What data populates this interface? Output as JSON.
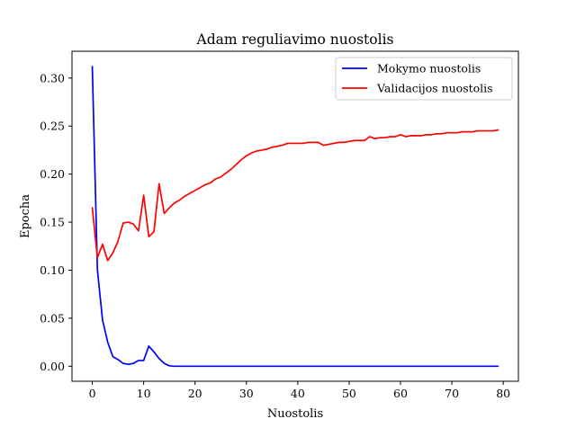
{
  "chart_data": {
    "type": "line",
    "title": "Adam reguliavimo nuostolis",
    "xlabel": "Nuostolis",
    "ylabel": "Epocha",
    "xlim": [
      -3.95,
      82.95
    ],
    "ylim": [
      -0.0156,
      0.3279
    ],
    "xticks": [
      0,
      10,
      20,
      30,
      40,
      50,
      60,
      70,
      80
    ],
    "yticks": [
      0.0,
      0.05,
      0.1,
      0.15,
      0.2,
      0.25,
      0.3
    ],
    "ytick_labels": [
      "0.00",
      "0.05",
      "0.10",
      "0.15",
      "0.20",
      "0.25",
      "0.30"
    ],
    "grid": false,
    "legend_position": "top-right",
    "series": [
      {
        "name": "Mokymo nuostolis",
        "color": "#0000ff",
        "x": [
          0,
          1,
          2,
          3,
          4,
          5,
          6,
          7,
          8,
          9,
          10,
          11,
          12,
          13,
          14,
          15,
          16,
          17,
          18,
          19,
          20,
          21,
          22,
          23,
          24,
          25,
          26,
          27,
          28,
          29,
          30,
          31,
          32,
          33,
          34,
          35,
          36,
          37,
          38,
          39,
          40,
          41,
          42,
          43,
          44,
          45,
          46,
          47,
          48,
          49,
          50,
          51,
          52,
          53,
          54,
          55,
          56,
          57,
          58,
          59,
          60,
          61,
          62,
          63,
          64,
          65,
          66,
          67,
          68,
          69,
          70,
          71,
          72,
          73,
          74,
          75,
          76,
          77,
          78,
          79
        ],
        "y": [
          0.312,
          0.1,
          0.048,
          0.025,
          0.01,
          0.007,
          0.003,
          0.002,
          0.003,
          0.006,
          0.006,
          0.021,
          0.015,
          0.008,
          0.003,
          0.0005,
          0,
          0,
          0,
          0,
          0,
          0,
          0,
          0,
          0,
          0,
          0,
          0,
          0,
          0,
          0,
          0,
          0,
          0,
          0,
          0,
          0,
          0,
          0,
          0,
          0,
          0,
          0,
          0,
          0,
          0,
          0,
          0,
          0,
          0,
          0,
          0,
          0,
          0,
          0,
          0,
          0,
          0,
          0,
          0,
          0,
          0,
          0,
          0,
          0,
          0,
          0,
          0,
          0,
          0,
          0,
          0,
          0,
          0,
          0,
          0,
          0,
          0,
          0,
          0
        ]
      },
      {
        "name": "Validacijos nuostolis",
        "color": "#ff0000",
        "x": [
          0,
          1,
          2,
          3,
          4,
          5,
          6,
          7,
          8,
          9,
          10,
          11,
          12,
          13,
          14,
          15,
          16,
          17,
          18,
          19,
          20,
          21,
          22,
          23,
          24,
          25,
          26,
          27,
          28,
          29,
          30,
          31,
          32,
          33,
          34,
          35,
          36,
          37,
          38,
          39,
          40,
          41,
          42,
          43,
          44,
          45,
          46,
          47,
          48,
          49,
          50,
          51,
          52,
          53,
          54,
          55,
          56,
          57,
          58,
          59,
          60,
          61,
          62,
          63,
          64,
          65,
          66,
          67,
          68,
          69,
          70,
          71,
          72,
          73,
          74,
          75,
          76,
          77,
          78,
          79
        ],
        "y": [
          0.165,
          0.113,
          0.127,
          0.11,
          0.118,
          0.13,
          0.149,
          0.15,
          0.148,
          0.141,
          0.178,
          0.135,
          0.14,
          0.19,
          0.159,
          0.165,
          0.17,
          0.173,
          0.177,
          0.18,
          0.183,
          0.186,
          0.189,
          0.191,
          0.195,
          0.197,
          0.201,
          0.205,
          0.21,
          0.215,
          0.219,
          0.222,
          0.224,
          0.225,
          0.226,
          0.228,
          0.229,
          0.23,
          0.232,
          0.232,
          0.232,
          0.232,
          0.233,
          0.233,
          0.233,
          0.23,
          0.231,
          0.232,
          0.233,
          0.233,
          0.234,
          0.235,
          0.235,
          0.235,
          0.239,
          0.237,
          0.238,
          0.238,
          0.239,
          0.239,
          0.241,
          0.239,
          0.24,
          0.24,
          0.24,
          0.241,
          0.241,
          0.242,
          0.242,
          0.243,
          0.243,
          0.243,
          0.244,
          0.244,
          0.244,
          0.245,
          0.245,
          0.245,
          0.245,
          0.246
        ]
      }
    ]
  }
}
